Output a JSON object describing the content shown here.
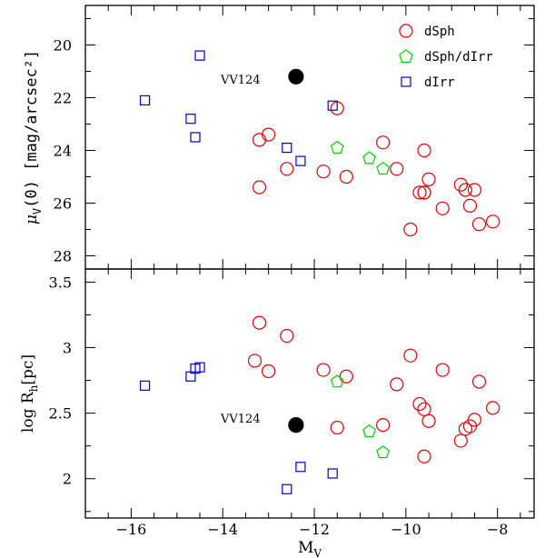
{
  "chart_data": [
    {
      "type": "scatter",
      "panel": "top",
      "ylabel_main": "μ",
      "ylabel_sub": "V",
      "ylabel_tail": "(0)  [mag/arcsec²]",
      "xlim": [
        -17,
        -7.2
      ],
      "ylim": [
        28.5,
        18.5
      ],
      "y_inverted": true,
      "yticks": [
        20,
        22,
        24,
        26,
        28
      ],
      "ytick_labels": [
        "20",
        "22",
        "24",
        "26",
        "28"
      ],
      "legend_position": "top-right",
      "annotation": {
        "text": "VV124",
        "x": -12.4,
        "y": 21.2
      },
      "series": [
        {
          "name": "dSph",
          "marker": "circle",
          "color": "#e00000",
          "filled": false,
          "x": [
            -13.2,
            -13.0,
            -13.2,
            -12.6,
            -11.8,
            -11.5,
            -11.3,
            -10.5,
            -10.2,
            -9.9,
            -9.7,
            -9.6,
            -9.6,
            -9.5,
            -9.2,
            -8.8,
            -8.7,
            -8.6,
            -8.5,
            -8.4,
            -8.1,
            -9.6
          ],
          "y": [
            23.6,
            23.4,
            25.4,
            24.7,
            24.8,
            22.4,
            25.0,
            23.7,
            24.7,
            27.0,
            25.6,
            25.6,
            24.0,
            25.1,
            26.2,
            25.3,
            25.5,
            26.1,
            25.5,
            26.8,
            26.7,
            25.6
          ]
        },
        {
          "name": "dSph/dIrr",
          "marker": "pentagon",
          "color": "#00cc00",
          "filled": false,
          "x": [
            -11.5,
            -10.8,
            -10.5
          ],
          "y": [
            23.9,
            24.3,
            24.7
          ]
        },
        {
          "name": "dIrr",
          "marker": "square",
          "color": "#0000cc",
          "filled": false,
          "x": [
            -15.7,
            -14.7,
            -14.6,
            -14.5,
            -12.6,
            -12.3,
            -11.6
          ],
          "y": [
            22.1,
            22.8,
            23.5,
            20.4,
            23.9,
            24.4,
            22.3
          ]
        },
        {
          "name": "VV124",
          "marker": "circle",
          "color": "#000000",
          "filled": true,
          "x": [
            -12.4
          ],
          "y": [
            21.2
          ]
        }
      ]
    },
    {
      "type": "scatter",
      "panel": "bottom",
      "ylabel_main": "log R",
      "ylabel_sub": "h",
      "ylabel_tail": "[pc]",
      "xlabel_main": "M",
      "xlabel_sub": "V",
      "xlim": [
        -17,
        -7.2
      ],
      "ylim": [
        1.7,
        3.6
      ],
      "xticks": [
        -16,
        -14,
        -12,
        -10,
        -8
      ],
      "xtick_labels": [
        "−16",
        "−14",
        "−12",
        "−10",
        "−8"
      ],
      "yticks": [
        2,
        2.5,
        3,
        3.5
      ],
      "ytick_labels": [
        "2",
        "2.5",
        "3",
        "3.5"
      ],
      "annotation": {
        "text": "VV124",
        "x": -12.4,
        "y": 2.41
      },
      "series": [
        {
          "name": "dSph",
          "marker": "circle",
          "color": "#e00000",
          "filled": false,
          "x": [
            -13.2,
            -13.3,
            -13.0,
            -12.6,
            -11.8,
            -11.5,
            -11.3,
            -10.5,
            -10.2,
            -9.9,
            -9.7,
            -9.6,
            -9.6,
            -9.5,
            -9.2,
            -8.8,
            -8.7,
            -8.6,
            -8.5,
            -8.4,
            -8.1
          ],
          "y": [
            3.19,
            2.9,
            2.82,
            3.09,
            2.83,
            2.39,
            2.78,
            2.41,
            2.72,
            2.94,
            2.57,
            2.53,
            2.17,
            2.44,
            2.83,
            2.29,
            2.38,
            2.4,
            2.45,
            2.74,
            2.54
          ]
        },
        {
          "name": "dSph/dIrr",
          "marker": "pentagon",
          "color": "#00cc00",
          "filled": false,
          "x": [
            -11.5,
            -10.8,
            -10.5
          ],
          "y": [
            2.74,
            2.36,
            2.2
          ]
        },
        {
          "name": "dIrr",
          "marker": "square",
          "color": "#0000cc",
          "filled": false,
          "x": [
            -15.7,
            -14.7,
            -14.6,
            -14.5,
            -12.6,
            -12.3,
            -11.6
          ],
          "y": [
            2.71,
            2.78,
            2.84,
            2.85,
            1.92,
            2.09,
            2.04
          ]
        },
        {
          "name": "VV124",
          "marker": "circle",
          "color": "#000000",
          "filled": true,
          "x": [
            -12.4
          ],
          "y": [
            2.41
          ]
        }
      ]
    }
  ]
}
